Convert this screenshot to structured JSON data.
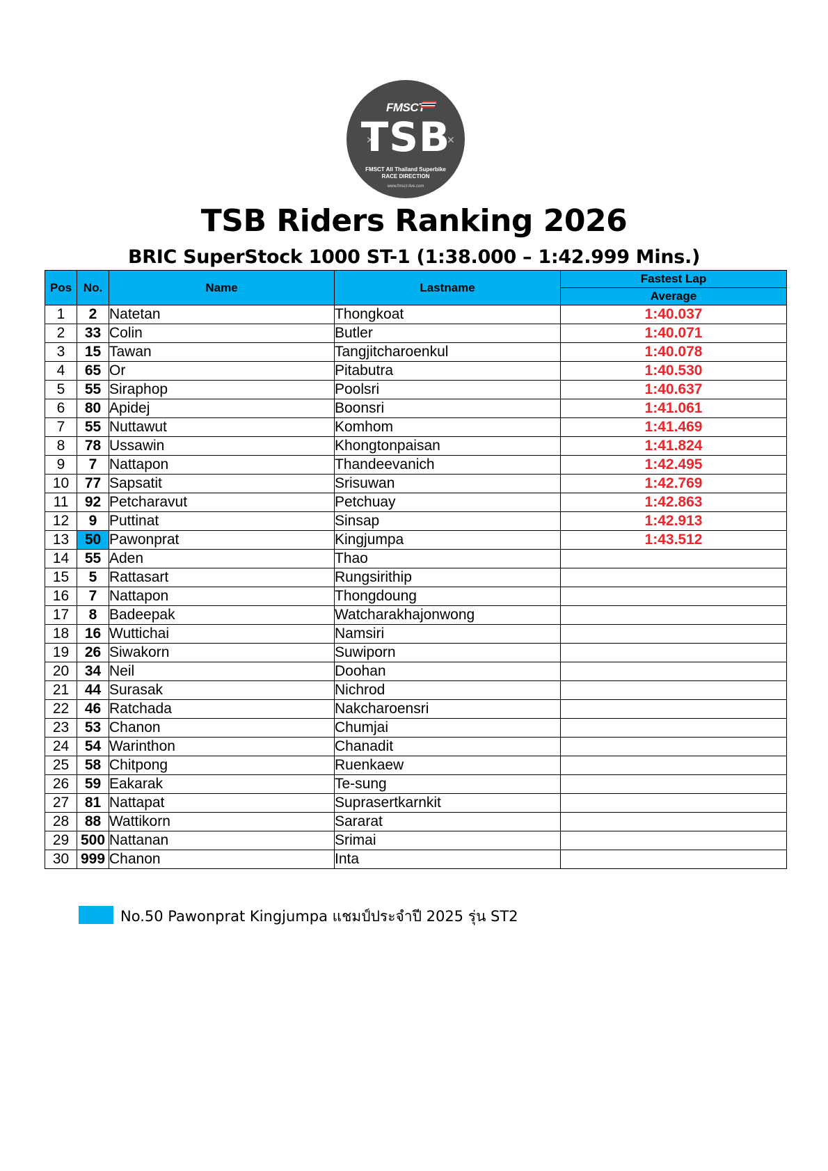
{
  "logo": {
    "brand": "FMSCT",
    "mark": "TSB",
    "line1": "FMSCT All Thailand Superbike",
    "line2": "RACE DIRECTION",
    "url": "www.fmsct-live.com"
  },
  "title": "TSB Riders Ranking 2026",
  "subtitle": "BRIC SuperStock 1000 ST-1 (1:38.000 – 1:42.999 Mins.)",
  "table": {
    "headers": {
      "pos": "Pos",
      "no": "No.",
      "name": "Name",
      "lastname": "Lastname",
      "fastest_lap": "Fastest Lap",
      "average": "Average"
    },
    "rows": [
      {
        "pos": "1",
        "no": "2",
        "name": "Natetan",
        "lastname": "Thongkoat",
        "lap": "1:40.037"
      },
      {
        "pos": "2",
        "no": "33",
        "name": "Colin",
        "lastname": "Butler",
        "lap": "1:40.071"
      },
      {
        "pos": "3",
        "no": "15",
        "name": "Tawan",
        "lastname": "Tangjitcharoenkul",
        "lap": "1:40.078"
      },
      {
        "pos": "4",
        "no": "65",
        "name": "Or",
        "lastname": "Pitabutra",
        "lap": "1:40.530"
      },
      {
        "pos": "5",
        "no": "55",
        "name": "Siraphop",
        "lastname": "Poolsri",
        "lap": "1:40.637"
      },
      {
        "pos": "6",
        "no": "80",
        "name": "Apidej",
        "lastname": "Boonsri",
        "lap": "1:41.061"
      },
      {
        "pos": "7",
        "no": "55",
        "name": "Nuttawut",
        "lastname": "Komhom",
        "lap": "1:41.469"
      },
      {
        "pos": "8",
        "no": "78",
        "name": "Ussawin",
        "lastname": "Khongtonpaisan",
        "lap": "1:41.824"
      },
      {
        "pos": "9",
        "no": "7",
        "name": "Nattapon",
        "lastname": "Thandeevanich",
        "lap": "1:42.495"
      },
      {
        "pos": "10",
        "no": "77",
        "name": "Sapsatit",
        "lastname": "Srisuwan",
        "lap": "1:42.769"
      },
      {
        "pos": "11",
        "no": "92",
        "name": "Petcharavut",
        "lastname": "Petchuay",
        "lap": "1:42.863"
      },
      {
        "pos": "12",
        "no": "9",
        "name": "Puttinat",
        "lastname": "Sinsap",
        "lap": "1:42.913"
      },
      {
        "pos": "13",
        "no": "50",
        "name": "Pawonprat",
        "lastname": "Kingjumpa",
        "lap": "1:43.512",
        "highlight": true
      },
      {
        "pos": "14",
        "no": "55",
        "name": "Aden",
        "lastname": "Thao",
        "lap": ""
      },
      {
        "pos": "15",
        "no": "5",
        "name": "Rattasart",
        "lastname": "Rungsirithip",
        "lap": ""
      },
      {
        "pos": "16",
        "no": "7",
        "name": "Nattapon",
        "lastname": "Thongdoung",
        "lap": ""
      },
      {
        "pos": "17",
        "no": "8",
        "name": "Badeepak",
        "lastname": "Watcharakhajonwong",
        "lap": ""
      },
      {
        "pos": "18",
        "no": "16",
        "name": "Wuttichai",
        "lastname": "Namsiri",
        "lap": ""
      },
      {
        "pos": "19",
        "no": "26",
        "name": "Siwakorn",
        "lastname": "Suwiporn",
        "lap": ""
      },
      {
        "pos": "20",
        "no": "34",
        "name": "Neil",
        "lastname": "Doohan",
        "lap": ""
      },
      {
        "pos": "21",
        "no": "44",
        "name": "Surasak",
        "lastname": "Nichrod",
        "lap": ""
      },
      {
        "pos": "22",
        "no": "46",
        "name": "Ratchada",
        "lastname": "Nakcharoensri",
        "lap": ""
      },
      {
        "pos": "23",
        "no": "53",
        "name": "Chanon",
        "lastname": "Chumjai",
        "lap": ""
      },
      {
        "pos": "24",
        "no": "54",
        "name": "Warinthon",
        "lastname": "Chanadit",
        "lap": ""
      },
      {
        "pos": "25",
        "no": "58",
        "name": "Chitpong",
        "lastname": "Ruenkaew",
        "lap": ""
      },
      {
        "pos": "26",
        "no": "59",
        "name": "Eakarak",
        "lastname": "Te-sung",
        "lap": ""
      },
      {
        "pos": "27",
        "no": "81",
        "name": "Nattapat",
        "lastname": "Suprasertkarnkit",
        "lap": ""
      },
      {
        "pos": "28",
        "no": "88",
        "name": "Wattikorn",
        "lastname": "Sararat",
        "lap": ""
      },
      {
        "pos": "29",
        "no": "500",
        "name": "Nattanan",
        "lastname": "Srimai",
        "lap": ""
      },
      {
        "pos": "30",
        "no": "999",
        "name": "Chanon",
        "lastname": "Inta",
        "lap": ""
      }
    ]
  },
  "legend": {
    "text": "No.50 Pawonprat Kingjumpa แชมป์ประจำปี 2025 รุ่น ST2"
  },
  "colors": {
    "highlight": "#00b0f0",
    "lap_text": "#e8272d",
    "logo_bg": "#4a4a4a"
  }
}
